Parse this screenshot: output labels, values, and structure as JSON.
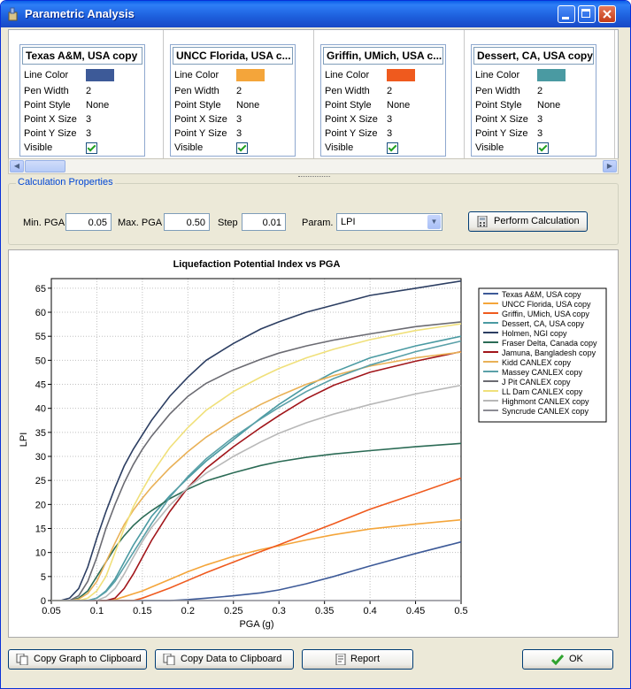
{
  "window": {
    "title": "Parametric Analysis"
  },
  "series_cards": [
    {
      "name": "Texas A&M, USA copy",
      "color": "#3d5a98",
      "pen_width": "2",
      "point_style": "None",
      "x_size": "3",
      "y_size": "3"
    },
    {
      "name": "UNCC Florida, USA c...",
      "color": "#f4a53a",
      "pen_width": "2",
      "point_style": "None",
      "x_size": "3",
      "y_size": "3"
    },
    {
      "name": "Griffin, UMich, USA c...",
      "color": "#ef5a1e",
      "pen_width": "2",
      "point_style": "None",
      "x_size": "3",
      "y_size": "3"
    },
    {
      "name": "Dessert, CA, USA copy",
      "color": "#4a9aa2",
      "pen_width": "2",
      "point_style": "None",
      "x_size": "3",
      "y_size": "3"
    }
  ],
  "card_labels": {
    "line_color": "Line Color",
    "pen_width": "Pen Width",
    "point_style": "Point Style",
    "x_size": "Point X Size",
    "y_size": "Point Y Size",
    "visible": "Visible"
  },
  "calc": {
    "group_title": "Calculation Properties",
    "min_label": "Min. PGA",
    "min_value": "0.05",
    "max_label": "Max. PGA",
    "max_value": "0.50",
    "step_label": "Step",
    "step_value": "0.01",
    "param_label": "Param.",
    "param_value": "LPI",
    "perform_label": "Perform Calculation"
  },
  "buttons": {
    "copy_graph": "Copy Graph to Clipboard",
    "copy_data": "Copy Data to Clipboard",
    "report": "Report",
    "ok": "OK"
  },
  "chart_data": {
    "type": "line",
    "title": "Liquefaction Potential Index vs PGA",
    "xlabel": "PGA (g)",
    "ylabel": "LPI",
    "xlim": [
      0.05,
      0.5
    ],
    "ylim": [
      0,
      67
    ],
    "xticks": [
      "0.05",
      "0.1",
      "0.15",
      "0.2",
      "0.25",
      "0.3",
      "0.35",
      "0.4",
      "0.45",
      "0.5"
    ],
    "yticks": [
      "0",
      "5",
      "10",
      "15",
      "20",
      "25",
      "30",
      "35",
      "40",
      "45",
      "50",
      "55",
      "60",
      "65"
    ],
    "grid": true,
    "legend_position": "right",
    "x": [
      0.05,
      0.06,
      0.07,
      0.08,
      0.09,
      0.1,
      0.11,
      0.12,
      0.13,
      0.14,
      0.15,
      0.16,
      0.18,
      0.2,
      0.22,
      0.25,
      0.28,
      0.3,
      0.33,
      0.36,
      0.4,
      0.45,
      0.5
    ],
    "series": [
      {
        "name": "Texas A&M, USA copy",
        "color": "#3d5a98",
        "values": [
          0,
          0,
          0,
          0,
          0,
          0,
          0,
          0,
          0,
          0,
          0,
          0,
          0,
          0.2,
          0.5,
          1,
          1.6,
          2.2,
          3.5,
          5,
          7.2,
          9.8,
          12.2
        ]
      },
      {
        "name": "UNCC Florida, USA copy",
        "color": "#f4a53a",
        "values": [
          0,
          0,
          0,
          0,
          0,
          0,
          0,
          0.2,
          0.8,
          1.4,
          2,
          2.8,
          4.4,
          6,
          7.4,
          9.2,
          10.6,
          11.4,
          12.6,
          13.7,
          14.9,
          15.9,
          16.8
        ]
      },
      {
        "name": "Griffin, UMich, USA copy",
        "color": "#ef5a1e",
        "values": [
          0,
          0,
          0,
          0,
          0,
          0,
          0,
          0,
          0,
          0,
          0.5,
          1.2,
          2.6,
          4.2,
          5.8,
          8,
          10.2,
          11.6,
          13.8,
          16,
          19,
          22.2,
          25.5
        ]
      },
      {
        "name": "Dessert, CA, USA copy",
        "color": "#4a9aa2",
        "values": [
          0,
          0,
          0,
          0,
          0,
          0.5,
          2,
          4.5,
          8,
          11.5,
          14.5,
          17.5,
          21.8,
          25.5,
          29,
          33.5,
          38,
          40.8,
          44.5,
          47.5,
          50.5,
          53,
          55
        ]
      },
      {
        "name": "Holmen, NGI copy",
        "color": "#2c3e62",
        "values": [
          0,
          0,
          0.5,
          2.5,
          7,
          13,
          18.5,
          23.5,
          28,
          31.5,
          34.5,
          37.5,
          42.5,
          46.5,
          50,
          53.5,
          56.5,
          58,
          60,
          61.5,
          63.5,
          65,
          66.5
        ]
      },
      {
        "name": "Fraser Delta, Canada copy",
        "color": "#2b6b55",
        "values": [
          0,
          0,
          0,
          0.5,
          2,
          5,
          8,
          11,
          13.5,
          15.6,
          17.3,
          18.7,
          21.2,
          23.2,
          24.9,
          26.6,
          28.1,
          28.9,
          29.8,
          30.5,
          31.2,
          32,
          32.7
        ]
      },
      {
        "name": "Jamuna, Bangladesh copy",
        "color": "#a1151a",
        "values": [
          0,
          0,
          0,
          0,
          0,
          0,
          0,
          0.5,
          2.5,
          5.5,
          9,
          12.5,
          18.5,
          23.5,
          27.5,
          32,
          36,
          38.5,
          42,
          44.8,
          47.5,
          49.8,
          51.8
        ]
      },
      {
        "name": "Kidd CANLEX copy",
        "color": "#e9b157",
        "values": [
          0,
          0,
          0,
          0.3,
          1.5,
          4,
          8,
          12,
          15.8,
          18.8,
          21.3,
          23.6,
          27.6,
          31,
          34,
          37.7,
          40.8,
          42.6,
          45,
          46.8,
          48.8,
          50.5,
          51.7
        ]
      },
      {
        "name": "Massey CANLEX copy",
        "color": "#5aa0a8",
        "values": [
          0,
          0,
          0,
          0,
          0,
          0.5,
          1.8,
          4,
          7,
          10,
          13,
          16,
          21.5,
          25.8,
          29.5,
          34,
          37.8,
          40.2,
          43.5,
          46.2,
          49,
          51.8,
          54
        ]
      },
      {
        "name": "J Pit CANLEX copy",
        "color": "#6b6b72",
        "values": [
          0,
          0,
          0,
          1,
          4,
          9,
          15,
          20,
          24.5,
          28.3,
          31.5,
          34.2,
          38.8,
          42.5,
          45.2,
          48,
          50.2,
          51.5,
          53,
          54.2,
          55.5,
          57,
          58
        ]
      },
      {
        "name": "LL Dam CANLEX copy",
        "color": "#f0e07a",
        "values": [
          0,
          0,
          0,
          0,
          0.5,
          2,
          5,
          10,
          15,
          19.5,
          23,
          26.3,
          31.8,
          36,
          39.6,
          43.5,
          46.5,
          48.3,
          50.5,
          52.3,
          54.3,
          56.2,
          57.6
        ]
      },
      {
        "name": "Highmont CANLEX copy",
        "color": "#b8b8b8",
        "values": [
          0,
          0,
          0,
          0,
          0,
          0,
          0.8,
          2.5,
          5.5,
          9,
          12.3,
          15.2,
          19.8,
          23.5,
          26.5,
          30,
          33,
          34.8,
          37,
          38.8,
          40.8,
          43,
          44.8
        ]
      },
      {
        "name": "Syncrude CANLEX copy",
        "color": "#8c8c94",
        "values": [
          0,
          0,
          0,
          0,
          0,
          0,
          0,
          0,
          0,
          0,
          0,
          0,
          0,
          0,
          0,
          0,
          0,
          0,
          0,
          0,
          0,
          0,
          0
        ]
      }
    ]
  }
}
